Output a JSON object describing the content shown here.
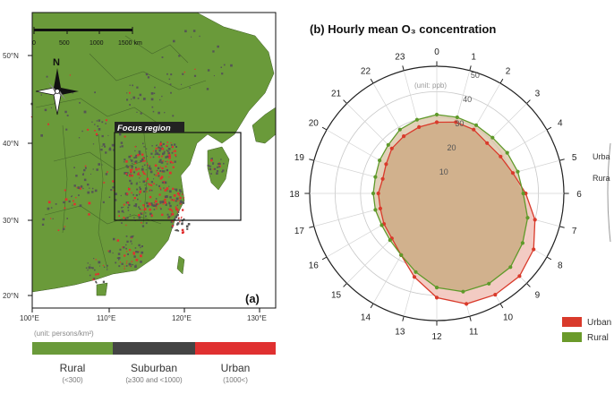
{
  "map": {
    "scale_labels": [
      "0",
      "500",
      "1000",
      "1500 km"
    ],
    "north_label": "N",
    "focus_label": "Focus region",
    "panel_label": "(a)",
    "lat_labels": [
      "50°N",
      "40°N",
      "30°N",
      "20°N"
    ],
    "lon_labels": [
      "100°E",
      "110°E",
      "120°E",
      "130°E"
    ],
    "unit_label": "(unit: persons/km²)",
    "categories": [
      {
        "name": "Rural",
        "range": "(<300)",
        "color": "#6a9a3a"
      },
      {
        "name": "Suburban",
        "range": "(≥300 and <1000)",
        "color": "#444444"
      },
      {
        "name": "Urban",
        "range": "(1000<)",
        "color": "#e03030"
      }
    ],
    "colors": {
      "land": "#6a9a3a",
      "sea": "#ffffff",
      "urban": "#e03030",
      "suburban": "#555555"
    }
  },
  "chart_data": {
    "type": "polar-line",
    "title": "(b) Hourly mean O₃ concentration",
    "unit_label": "(unit: ppb)",
    "hours": [
      "0",
      "1",
      "2",
      "3",
      "4",
      "5",
      "6",
      "7",
      "8",
      "9",
      "10",
      "11",
      "12",
      "13",
      "14",
      "15",
      "16",
      "17",
      "18",
      "19",
      "20",
      "21",
      "22",
      "23"
    ],
    "rlim": [
      0,
      50
    ],
    "r_ticks": [
      "10",
      "20",
      "30",
      "40",
      "50"
    ],
    "series": [
      {
        "name": "Urban",
        "color": "#d93a2b",
        "values": [
          28,
          29,
          29,
          28,
          29,
          31,
          35,
          40,
          44,
          46,
          46,
          45,
          41,
          34,
          28,
          25,
          24,
          23,
          23,
          22,
          23,
          25,
          26,
          27
        ]
      },
      {
        "name": "Rural",
        "color": "#5f9a2a",
        "values": [
          31,
          31,
          31,
          31,
          32,
          33,
          34,
          37,
          39,
          41,
          41,
          40,
          37,
          32,
          28,
          26,
          25,
          25,
          25,
          25,
          26,
          27,
          29,
          30
        ]
      }
    ],
    "legend": [
      "Urban",
      "Rural"
    ],
    "fills": {
      "urban": "#f2c8c0",
      "rural": "#d8c2a2"
    }
  }
}
